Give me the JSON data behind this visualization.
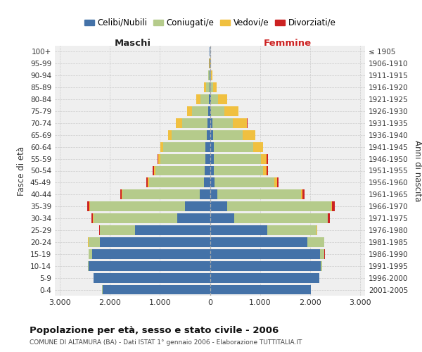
{
  "age_groups": [
    "0-4",
    "5-9",
    "10-14",
    "15-19",
    "20-24",
    "25-29",
    "30-34",
    "35-39",
    "40-44",
    "45-49",
    "50-54",
    "55-59",
    "60-64",
    "65-69",
    "70-74",
    "75-79",
    "80-84",
    "85-89",
    "90-94",
    "95-99",
    "100+"
  ],
  "birth_years": [
    "2001-2005",
    "1996-2000",
    "1991-1995",
    "1986-1990",
    "1981-1985",
    "1976-1980",
    "1971-1975",
    "1966-1970",
    "1961-1965",
    "1956-1960",
    "1951-1955",
    "1946-1950",
    "1941-1945",
    "1936-1940",
    "1931-1935",
    "1926-1930",
    "1921-1925",
    "1916-1920",
    "1911-1915",
    "1906-1910",
    "≤ 1905"
  ],
  "male_celibi": [
    2150,
    2320,
    2430,
    2350,
    2200,
    1500,
    650,
    500,
    200,
    120,
    100,
    95,
    90,
    70,
    50,
    35,
    15,
    10,
    5,
    3,
    2
  ],
  "male_coniugati": [
    4,
    8,
    15,
    70,
    230,
    700,
    1680,
    1900,
    1550,
    1100,
    990,
    900,
    840,
    690,
    510,
    330,
    180,
    70,
    25,
    8,
    4
  ],
  "male_vedovi": [
    0,
    1,
    1,
    1,
    4,
    4,
    4,
    8,
    12,
    18,
    28,
    38,
    55,
    75,
    115,
    95,
    75,
    35,
    12,
    4,
    1
  ],
  "male_divorziati": [
    0,
    0,
    0,
    1,
    4,
    8,
    28,
    48,
    28,
    28,
    22,
    18,
    4,
    4,
    2,
    2,
    2,
    0,
    0,
    0,
    0
  ],
  "female_nubili": [
    2020,
    2180,
    2220,
    2200,
    1950,
    1150,
    480,
    340,
    145,
    98,
    78,
    78,
    75,
    65,
    45,
    25,
    15,
    8,
    5,
    3,
    2
  ],
  "female_coniugate": [
    4,
    8,
    18,
    90,
    330,
    980,
    1870,
    2080,
    1680,
    1190,
    980,
    940,
    790,
    590,
    410,
    270,
    140,
    55,
    20,
    8,
    4
  ],
  "female_vedove": [
    0,
    1,
    1,
    1,
    4,
    8,
    8,
    18,
    28,
    48,
    78,
    118,
    195,
    245,
    290,
    270,
    190,
    75,
    22,
    7,
    1
  ],
  "female_divorziate": [
    0,
    0,
    0,
    1,
    4,
    8,
    38,
    52,
    38,
    38,
    28,
    28,
    8,
    4,
    4,
    2,
    2,
    0,
    0,
    0,
    0
  ],
  "color_celibi": "#4472a8",
  "color_coniugati": "#b5cb8b",
  "color_vedovi": "#f0c040",
  "color_divorziati": "#cc2222",
  "xlim": 3100,
  "xtick_vals": [
    -3000,
    -2000,
    -1000,
    0,
    1000,
    2000,
    3000
  ],
  "title": "Popolazione per età, sesso e stato civile - 2006",
  "subtitle": "COMUNE DI ALTAMURA (BA) - Dati ISTAT 1° gennaio 2006 - Elaborazione TUTTITALIA.IT",
  "ylabel_left": "Fasce di età",
  "ylabel_right": "Anni di nascita",
  "label_maschi": "Maschi",
  "label_femmine": "Femmine",
  "legend_labels": [
    "Celibi/Nubili",
    "Coniugati/e",
    "Vedovi/e",
    "Divorziati/e"
  ],
  "bg_color": "#ffffff",
  "plot_bg": "#efefef"
}
